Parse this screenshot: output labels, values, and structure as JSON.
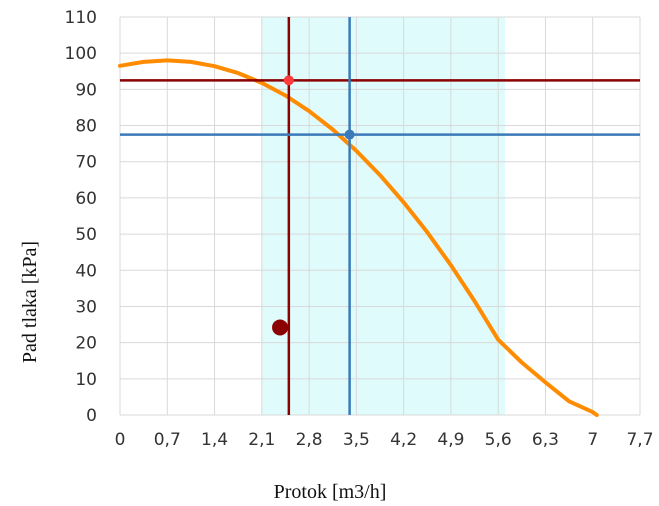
{
  "chart_data": {
    "type": "line",
    "xlabel": "Protok [m3/h]",
    "ylabel": "Pad tlaka [kPa]",
    "xlim": [
      0,
      7.7
    ],
    "ylim": [
      0,
      110
    ],
    "x_ticks": [
      0,
      0.7,
      1.4,
      2.1,
      2.8,
      3.5,
      4.2,
      4.9,
      5.6,
      6.3,
      7,
      7.7
    ],
    "x_tick_labels": [
      "0",
      "0,7",
      "1,4",
      "2,1",
      "2,8",
      "3,5",
      "4,2",
      "4,9",
      "5,6",
      "6,3",
      "7",
      "7,7"
    ],
    "y_ticks": [
      0,
      10,
      20,
      30,
      40,
      50,
      60,
      70,
      80,
      90,
      100,
      110
    ],
    "y_tick_labels": [
      "0",
      "10",
      "20",
      "30",
      "40",
      "50",
      "60",
      "70",
      "80",
      "90",
      "100",
      "110"
    ],
    "grid": true,
    "shaded_x_range": [
      2.1,
      5.7
    ],
    "series": [
      {
        "color": "#ff8c00",
        "x": [
          0,
          0.35,
          0.7,
          1.05,
          1.4,
          1.75,
          2.1,
          2.45,
          2.8,
          3.15,
          3.5,
          3.85,
          4.2,
          4.55,
          4.9,
          5.25,
          5.6,
          5.95,
          6.3,
          6.65,
          7.0,
          7.06
        ],
        "y": [
          96.5,
          97.6,
          98.0,
          97.6,
          96.4,
          94.5,
          91.8,
          88.3,
          84.0,
          78.9,
          73.0,
          66.3,
          58.8,
          50.5,
          41.4,
          31.5,
          20.8,
          14.5,
          9.0,
          3.8,
          0.8,
          0
        ]
      }
    ],
    "reference_lines": [
      {
        "color": "#8b0000",
        "x": 2.5,
        "y": 92.5
      },
      {
        "color": "#3a7ab8",
        "x": 3.4,
        "y": 77.5
      }
    ],
    "markers": [
      {
        "color": "#ff3b3b",
        "x": 2.5,
        "y": 92.5
      },
      {
        "color": "#3a7ab8",
        "x": 3.4,
        "y": 77.5
      },
      {
        "color": "#8b0000",
        "x": 2.37,
        "y": 24.2
      }
    ],
    "colors": {
      "shade": "#e0fbfb",
      "grid": "#d9d9d9"
    }
  }
}
